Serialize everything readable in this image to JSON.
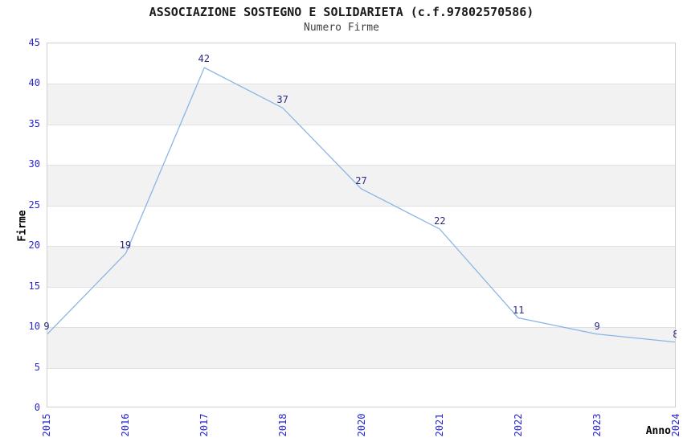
{
  "chart_data": {
    "type": "line",
    "title": "ASSOCIAZIONE SOSTEGNO E SOLIDARIETA (c.f.97802570586)",
    "subtitle": "Numero Firme",
    "xlabel": "Anno",
    "ylabel": "Firme",
    "categories": [
      "2015",
      "2016",
      "2017",
      "2018",
      "2020",
      "2021",
      "2022",
      "2023",
      "2024"
    ],
    "series": [
      {
        "name": "Numero Firme",
        "values": [
          9,
          19,
          42,
          37,
          27,
          22,
          11,
          9,
          8
        ]
      }
    ],
    "ylim": [
      0,
      45
    ],
    "ytick_step": 5,
    "grid": "horizontal",
    "background_bands": "alternating-gray",
    "legend": "none",
    "data_labels_shown": true,
    "colors": {
      "line": "#8ab5e6",
      "data_label": "#2a2a80",
      "tick_label": "#2626d2",
      "band": "#f2f2f2",
      "grid": "#e0e0e0",
      "plot_border": "#d0d0d0",
      "title": "#1a1a1a",
      "subtitle": "#3f3f3f",
      "axis_label": "#000000",
      "background": "#ffffff"
    }
  }
}
